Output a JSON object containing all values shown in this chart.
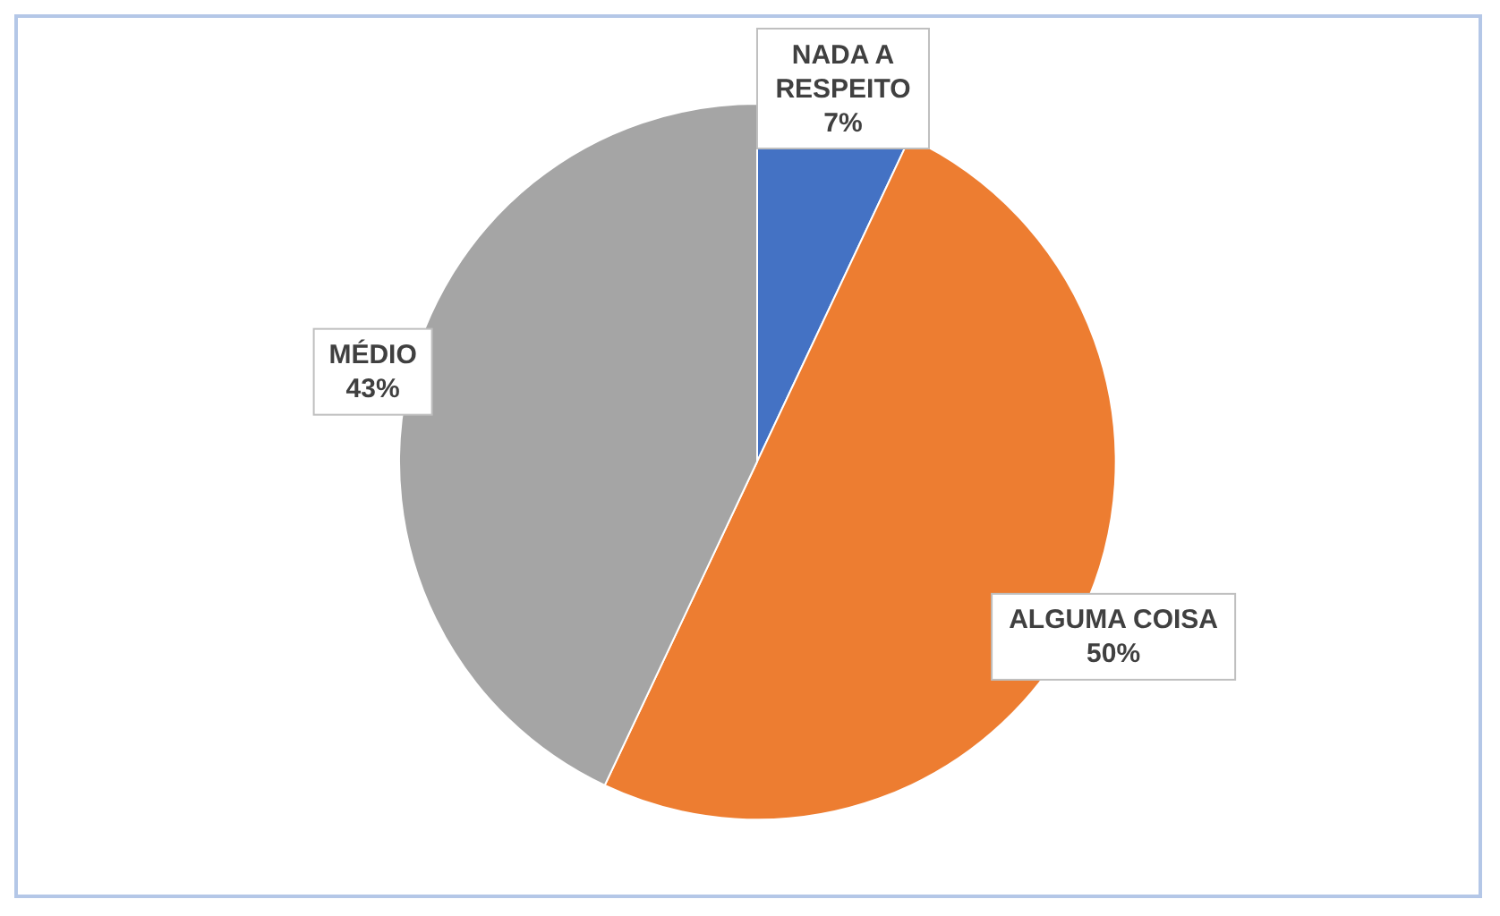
{
  "chart_data": {
    "type": "pie",
    "categories": [
      "NADA A RESPEITO",
      "ALGUMA COISA",
      "MÉDIO"
    ],
    "values": [
      7,
      50,
      43
    ],
    "colors": [
      "#4472c4",
      "#ed7d31",
      "#a5a5a5"
    ],
    "value_labels": [
      "7%",
      "50%",
      "43%"
    ]
  }
}
